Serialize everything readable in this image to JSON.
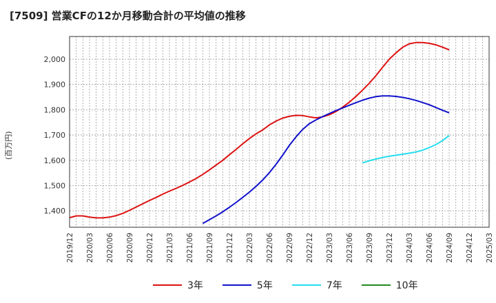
{
  "chart_data": {
    "type": "line",
    "title": "[7509]  営業CFの12か月移動合計の平均値の推移",
    "ylabel": "(百万円)",
    "ylim": [
      1335,
      2090
    ],
    "yticks": [
      1400,
      1500,
      1600,
      1700,
      1800,
      1900,
      2000
    ],
    "ytick_labels": [
      "1,400",
      "1,500",
      "1,600",
      "1,700",
      "1,800",
      "1,900",
      "2,000"
    ],
    "x_range": [
      "2019/12",
      "2025/03"
    ],
    "x_ticks": [
      "2019/12",
      "2020/03",
      "2020/06",
      "2020/09",
      "2020/12",
      "2021/03",
      "2021/06",
      "2021/09",
      "2021/12",
      "2022/03",
      "2022/06",
      "2022/09",
      "2022/12",
      "2023/03",
      "2023/06",
      "2023/09",
      "2023/12",
      "2024/03",
      "2024/06",
      "2024/09",
      "2024/12",
      "2025/03"
    ],
    "grid": true,
    "legend_position": "bottom",
    "series": [
      {
        "name": "3年",
        "color": "#dd1111",
        "x": [
          "2019/12",
          "2020/01",
          "2020/02",
          "2020/03",
          "2020/04",
          "2020/05",
          "2020/06",
          "2020/07",
          "2020/08",
          "2020/09",
          "2020/10",
          "2020/11",
          "2020/12",
          "2021/01",
          "2021/02",
          "2021/03",
          "2021/04",
          "2021/05",
          "2021/06",
          "2021/07",
          "2021/08",
          "2021/09",
          "2021/10",
          "2021/11",
          "2021/12",
          "2022/01",
          "2022/02",
          "2022/03",
          "2022/04",
          "2022/05",
          "2022/06",
          "2022/07",
          "2022/08",
          "2022/09",
          "2022/10",
          "2022/11",
          "2022/12",
          "2023/01",
          "2023/02",
          "2023/03",
          "2023/04",
          "2023/05",
          "2023/06",
          "2023/07",
          "2023/08",
          "2023/09",
          "2023/10",
          "2023/11",
          "2023/12",
          "2024/01",
          "2024/02",
          "2024/03",
          "2024/04",
          "2024/05",
          "2024/06",
          "2024/07",
          "2024/08",
          "2024/09"
        ],
        "values": [
          1373,
          1380,
          1380,
          1375,
          1372,
          1372,
          1375,
          1381,
          1390,
          1402,
          1415,
          1428,
          1441,
          1453,
          1466,
          1478,
          1489,
          1501,
          1514,
          1528,
          1544,
          1562,
          1581,
          1600,
          1622,
          1643,
          1665,
          1686,
          1705,
          1720,
          1740,
          1755,
          1767,
          1774,
          1778,
          1777,
          1772,
          1768,
          1772,
          1780,
          1793,
          1810,
          1830,
          1853,
          1878,
          1905,
          1935,
          1968,
          2000,
          2025,
          2047,
          2061,
          2066,
          2066,
          2063,
          2057,
          2048,
          2037
        ]
      },
      {
        "name": "5年",
        "color": "#1111cc",
        "x": [
          "2021/08",
          "2021/09",
          "2021/10",
          "2021/11",
          "2021/12",
          "2022/01",
          "2022/02",
          "2022/03",
          "2022/04",
          "2022/05",
          "2022/06",
          "2022/07",
          "2022/08",
          "2022/09",
          "2022/10",
          "2022/11",
          "2022/12",
          "2023/01",
          "2023/02",
          "2023/03",
          "2023/04",
          "2023/05",
          "2023/06",
          "2023/07",
          "2023/08",
          "2023/09",
          "2023/10",
          "2023/11",
          "2023/12",
          "2024/01",
          "2024/02",
          "2024/03",
          "2024/04",
          "2024/05",
          "2024/06",
          "2024/07",
          "2024/08",
          "2024/09"
        ],
        "values": [
          1350,
          1365,
          1380,
          1396,
          1414,
          1433,
          1453,
          1474,
          1497,
          1522,
          1551,
          1584,
          1620,
          1659,
          1693,
          1722,
          1745,
          1760,
          1773,
          1785,
          1797,
          1807,
          1818,
          1828,
          1838,
          1846,
          1852,
          1855,
          1855,
          1853,
          1849,
          1844,
          1837,
          1829,
          1820,
          1809,
          1798,
          1788
        ]
      },
      {
        "name": "7年",
        "color": "#22ddee",
        "x": [
          "2023/08",
          "2023/09",
          "2023/10",
          "2023/11",
          "2023/12",
          "2024/01",
          "2024/02",
          "2024/03",
          "2024/04",
          "2024/05",
          "2024/06",
          "2024/07",
          "2024/08",
          "2024/09"
        ],
        "values": [
          1590,
          1598,
          1605,
          1611,
          1616,
          1620,
          1624,
          1628,
          1633,
          1640,
          1650,
          1662,
          1678,
          1698
        ]
      },
      {
        "name": "10年",
        "color": "#228822",
        "x": [],
        "values": []
      }
    ]
  }
}
